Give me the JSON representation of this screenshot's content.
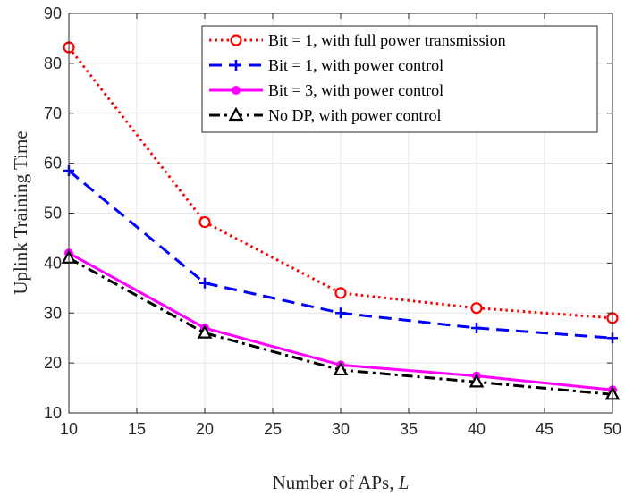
{
  "chart_data": {
    "type": "line",
    "title": "",
    "xlabel": "Number of APs,",
    "xlabel_var": "L",
    "ylabel": "Uplink Training Time",
    "xlim": [
      10,
      50
    ],
    "ylim": [
      10,
      90
    ],
    "xticks": [
      10,
      15,
      20,
      25,
      30,
      35,
      40,
      45,
      50
    ],
    "yticks": [
      10,
      20,
      30,
      40,
      50,
      60,
      70,
      80,
      90
    ],
    "grid": true,
    "legend_position": "top-right",
    "x": [
      10,
      20,
      30,
      40,
      50
    ],
    "series": [
      {
        "name": "Bit = 1, with full power transmission",
        "values": [
          83.2,
          48.2,
          34.0,
          31.0,
          29.0
        ],
        "color": "#ff0000",
        "line_style": "dotted",
        "marker": "circle-open"
      },
      {
        "name": "Bit = 1, with power control",
        "values": [
          58.5,
          36.0,
          30.0,
          27.0,
          25.0
        ],
        "color": "#0000ff",
        "line_style": "dashed",
        "marker": "plus"
      },
      {
        "name": "Bit = 3, with power control",
        "values": [
          42.0,
          27.0,
          19.6,
          17.4,
          14.6
        ],
        "color": "#ff00ff",
        "line_style": "solid",
        "marker": "circle-filled"
      },
      {
        "name": "No DP, with power control",
        "values": [
          41.0,
          26.0,
          18.6,
          16.2,
          13.7
        ],
        "color": "#000000",
        "line_style": "dash-dot",
        "marker": "triangle-open"
      }
    ]
  }
}
